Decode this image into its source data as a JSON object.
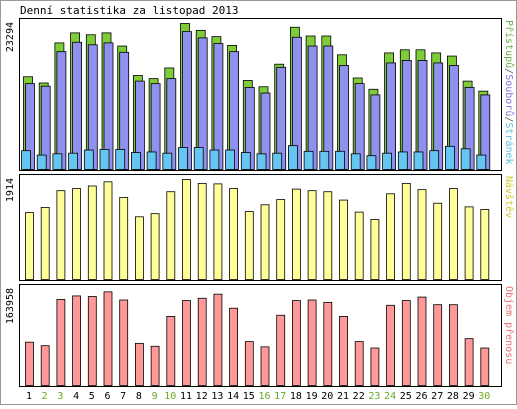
{
  "chart_data": {
    "type": "bar",
    "title": "Denní statistika za listopad 2013",
    "categories": [
      "1",
      "2",
      "3",
      "4",
      "5",
      "6",
      "7",
      "8",
      "9",
      "10",
      "11",
      "12",
      "13",
      "14",
      "15",
      "16",
      "17",
      "18",
      "19",
      "20",
      "21",
      "22",
      "23",
      "24",
      "25",
      "26",
      "27",
      "28",
      "29",
      "30"
    ],
    "weekend_days": [
      "2",
      "3",
      "9",
      "10",
      "16",
      "17",
      "23",
      "24",
      "30"
    ],
    "panels": [
      {
        "name": "hits-files-pages",
        "ylabel_max": "23294",
        "ymax": 23294,
        "legend_parts": [
          {
            "text": "Přístupů",
            "color": "#6ab04c"
          },
          {
            "text": "/",
            "color": "#555555"
          },
          {
            "text": "Souborů",
            "color": "#7b7bd6"
          },
          {
            "text": "/",
            "color": "#555555"
          },
          {
            "text": "Stránek",
            "color": "#5fbfe8"
          }
        ],
        "series": [
          {
            "name": "Přístupů",
            "color": "#7fcc39",
            "values": [
              14800,
              13800,
              20200,
              21800,
              21500,
              21800,
              19700,
              15000,
              14500,
              16200,
              23294,
              22200,
              21200,
              19800,
              14200,
              13200,
              16800,
              22700,
              21300,
              21300,
              18300,
              14600,
              12800,
              18600,
              19100,
              19100,
              18600,
              18100,
              14100,
              12500
            ]
          },
          {
            "name": "Souborů",
            "color": "#9090ee",
            "values": [
              13700,
              13300,
              18800,
              20300,
              19900,
              20200,
              18700,
              14100,
              13700,
              14500,
              22000,
              21000,
              20100,
              18800,
              13100,
              12200,
              16300,
              21100,
              19700,
              19700,
              16600,
              13700,
              11900,
              17000,
              17400,
              17400,
              17000,
              16600,
              13100,
              11900
            ]
          },
          {
            "name": "Stránek",
            "color": "#66c6f2",
            "values": [
              3000,
              2300,
              2500,
              2600,
              3100,
              3200,
              3200,
              2700,
              2800,
              2600,
              3500,
              3500,
              3100,
              3100,
              2700,
              2500,
              2600,
              3800,
              2900,
              2900,
              2900,
              2500,
              2200,
              2600,
              2800,
              2800,
              3000,
              3700,
              3300,
              2300
            ]
          }
        ]
      },
      {
        "name": "visits",
        "ylabel_max": "1914",
        "ymax": 1914,
        "legend_parts": [
          {
            "text": "Návštěv",
            "color": "#cccc33"
          }
        ],
        "series": [
          {
            "name": "Návštěv",
            "color": "#ffff99",
            "values": [
              1280,
              1380,
              1700,
              1740,
              1790,
              1870,
              1570,
              1200,
              1260,
              1680,
              1914,
              1840,
              1830,
              1740,
              1300,
              1430,
              1530,
              1730,
              1700,
              1680,
              1520,
              1290,
              1150,
              1640,
              1840,
              1720,
              1460,
              1740,
              1390,
              1340
            ]
          }
        ]
      },
      {
        "name": "traffic",
        "ylabel_max": "163958",
        "ymax": 163958,
        "legend_parts": [
          {
            "text": "Objem přenosu",
            "color": "#e87070"
          }
        ],
        "series": [
          {
            "name": "Objem přenosu",
            "color": "#ff9999",
            "values": [
              74000,
              68000,
              147000,
              153000,
              152000,
              160000,
              146000,
              72000,
              67000,
              118000,
              145000,
              149000,
              156000,
              132000,
              75000,
              66000,
              120000,
              145000,
              146000,
              142000,
              118000,
              75000,
              64000,
              137000,
              145000,
              151000,
              138000,
              138000,
              80000,
              64000
            ]
          }
        ]
      }
    ]
  }
}
